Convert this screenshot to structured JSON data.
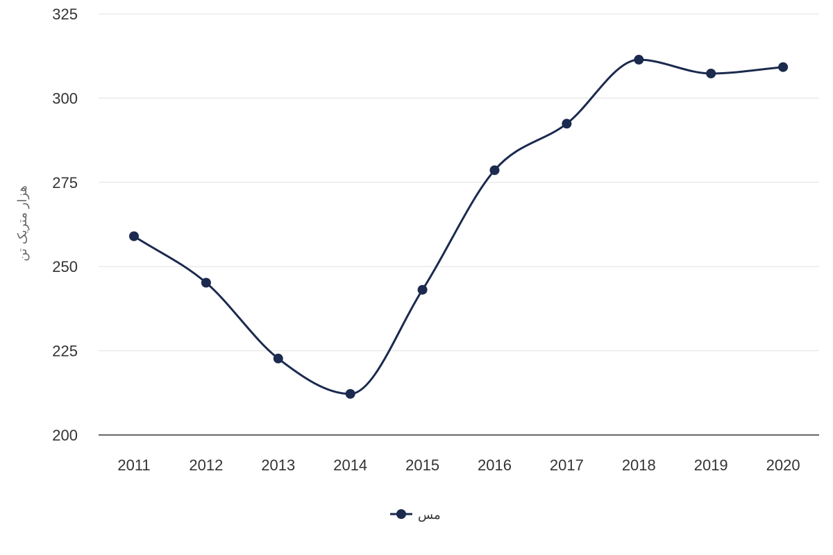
{
  "chart_data": {
    "type": "line",
    "title": "",
    "xlabel": "",
    "ylabel": "هزار متریک تن",
    "x": [
      "2011",
      "2012",
      "2013",
      "2014",
      "2015",
      "2016",
      "2017",
      "2018",
      "2019",
      "2020"
    ],
    "series": [
      {
        "name": "مس",
        "color": "#1b2a4e",
        "values": [
          259,
          245.2,
          222.7,
          212.2,
          243.1,
          278.6,
          292.4,
          311.4,
          307.3,
          309.2
        ]
      }
    ],
    "ylim": [
      200,
      325
    ],
    "yticks": [
      "200",
      "225",
      "250",
      "275",
      "300",
      "325"
    ],
    "grid": true,
    "legend_position": "bottom-center",
    "smooth": true,
    "markers": true
  }
}
